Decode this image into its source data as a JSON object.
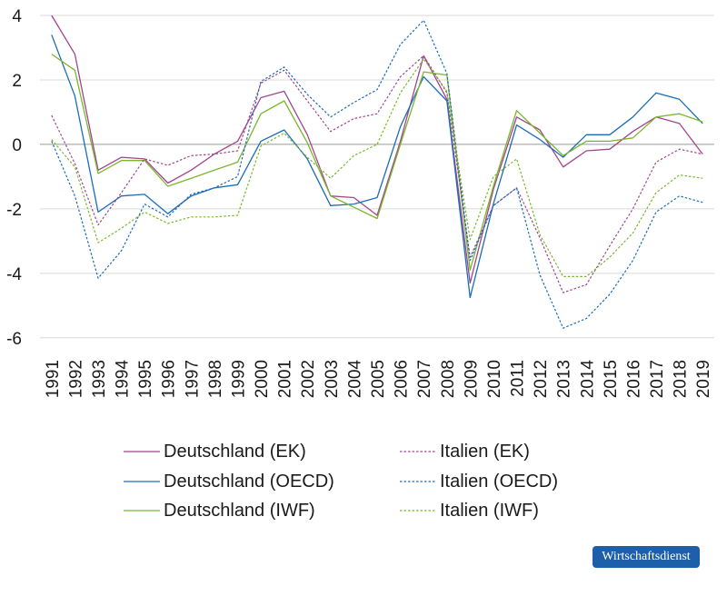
{
  "chart_data": {
    "type": "line",
    "title": "",
    "xlabel": "",
    "ylabel": "",
    "x": [
      "1991",
      "1992",
      "1993",
      "1994",
      "1995",
      "1996",
      "1997",
      "1998",
      "1999",
      "2000",
      "2001",
      "2002",
      "2003",
      "2004",
      "2005",
      "2006",
      "2007",
      "2008",
      "2009",
      "2010",
      "2011",
      "2012",
      "2013",
      "2014",
      "2015",
      "2016",
      "2017",
      "2018",
      "2019"
    ],
    "ylim": [
      -6.4,
      4.0
    ],
    "yticks": [
      -6,
      -4,
      -2,
      0,
      2,
      4
    ],
    "series": [
      {
        "name": "Deutschland (EK)",
        "color": "#a0468c",
        "dash": "solid",
        "values": [
          4.0,
          2.8,
          -0.8,
          -0.4,
          -0.45,
          -1.2,
          -0.8,
          -0.3,
          0.1,
          1.45,
          1.65,
          0.3,
          -1.6,
          -1.65,
          -2.2,
          0.1,
          2.75,
          1.4,
          -4.3,
          -1.4,
          0.85,
          0.45,
          -0.7,
          -0.2,
          -0.15,
          0.4,
          0.85,
          0.65,
          -0.3
        ]
      },
      {
        "name": "Deutschland (OECD)",
        "color": "#1b6db8",
        "dash": "solid",
        "values": [
          3.4,
          1.5,
          -2.1,
          -1.6,
          -1.55,
          -2.15,
          -1.6,
          -1.35,
          -1.25,
          0.1,
          0.45,
          -0.45,
          -1.9,
          -1.85,
          -1.65,
          0.55,
          2.1,
          1.35,
          -4.75,
          -1.85,
          0.6,
          0.15,
          -0.4,
          0.3,
          0.3,
          0.85,
          1.6,
          1.4,
          0.65
        ]
      },
      {
        "name": "Deutschland (IWF)",
        "color": "#7ab62c",
        "dash": "solid",
        "values": [
          2.8,
          2.3,
          -0.9,
          -0.5,
          -0.5,
          -1.3,
          -1.05,
          -0.8,
          -0.55,
          0.95,
          1.35,
          0.05,
          -1.6,
          -1.95,
          -2.3,
          0.0,
          2.25,
          2.15,
          -3.9,
          -1.3,
          1.05,
          0.35,
          -0.35,
          0.1,
          0.1,
          0.2,
          0.85,
          0.95,
          0.7
        ]
      },
      {
        "name": "Italien (EK)",
        "color": "#a0468c",
        "dash": "dotted",
        "values": [
          0.9,
          -0.6,
          -2.5,
          -1.5,
          -0.45,
          -0.65,
          -0.35,
          -0.3,
          -0.2,
          1.9,
          2.3,
          1.35,
          0.4,
          0.8,
          0.95,
          2.1,
          2.75,
          1.6,
          -3.5,
          -1.9,
          -1.35,
          -2.9,
          -4.6,
          -4.35,
          -3.15,
          -2.0,
          -0.55,
          -0.15,
          -0.3
        ]
      },
      {
        "name": "Italien (OECD)",
        "color": "#1b6db8",
        "dash": "dotted",
        "values": [
          0.1,
          -1.6,
          -4.15,
          -3.3,
          -1.85,
          -2.25,
          -1.55,
          -1.35,
          -1.0,
          1.95,
          2.4,
          1.55,
          0.85,
          1.3,
          1.7,
          3.1,
          3.85,
          2.2,
          -3.6,
          -1.9,
          -1.35,
          -4.05,
          -5.7,
          -5.4,
          -4.65,
          -3.6,
          -2.1,
          -1.6,
          -1.8
        ]
      },
      {
        "name": "Italien (IWF)",
        "color": "#7ab62c",
        "dash": "dotted",
        "values": [
          0.15,
          -0.7,
          -3.05,
          -2.6,
          -2.1,
          -2.45,
          -2.25,
          -2.25,
          -2.2,
          -0.05,
          0.35,
          -0.4,
          -1.05,
          -0.35,
          0.0,
          1.6,
          2.65,
          1.65,
          -2.95,
          -1.0,
          -0.45,
          -2.8,
          -4.1,
          -4.1,
          -3.5,
          -2.75,
          -1.5,
          -0.95,
          -1.05
        ]
      }
    ],
    "grid": true,
    "legend": {
      "placement": "bottom",
      "columns": 2,
      "order": [
        "Deutschland (EK)",
        "Italien (EK)",
        "Deutschland (OECD)",
        "Italien (OECD)",
        "Deutschland (IWF)",
        "Italien (IWF)"
      ]
    }
  },
  "source_badge": "Wirtschaftsdienst"
}
